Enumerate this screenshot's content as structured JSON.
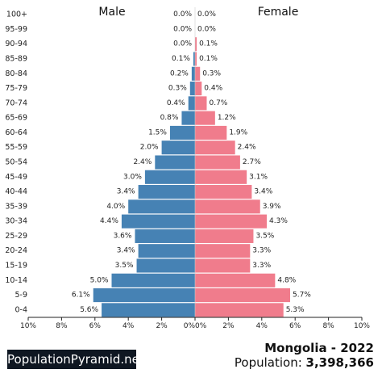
{
  "chart_data": {
    "type": "bar",
    "orientation": "horizontal-population-pyramid",
    "side_labels": {
      "left": "Male",
      "right": "Female"
    },
    "categories": [
      "100+",
      "95-99",
      "90-94",
      "85-89",
      "80-84",
      "75-79",
      "70-74",
      "65-69",
      "60-64",
      "55-59",
      "50-54",
      "45-49",
      "40-44",
      "35-39",
      "30-34",
      "25-29",
      "20-24",
      "15-19",
      "10-14",
      "5-9",
      "0-4"
    ],
    "series": [
      {
        "name": "Male",
        "values": [
          0.0,
          0.0,
          0.0,
          0.1,
          0.2,
          0.3,
          0.4,
          0.8,
          1.5,
          2.0,
          2.4,
          3.0,
          3.4,
          4.0,
          4.4,
          3.6,
          3.4,
          3.5,
          5.0,
          6.1,
          5.6
        ],
        "labels": [
          "0.0%",
          "0.0%",
          "0.0%",
          "0.1%",
          "0.2%",
          "0.3%",
          "0.4%",
          "0.8%",
          "1.5%",
          "2.0%",
          "2.4%",
          "3.0%",
          "3.4%",
          "4.0%",
          "4.4%",
          "3.6%",
          "3.4%",
          "3.5%",
          "5.0%",
          "6.1%",
          "5.6%"
        ]
      },
      {
        "name": "Female",
        "values": [
          0.0,
          0.0,
          0.1,
          0.1,
          0.3,
          0.4,
          0.7,
          1.2,
          1.9,
          2.4,
          2.7,
          3.1,
          3.4,
          3.9,
          4.3,
          3.5,
          3.3,
          3.3,
          4.8,
          5.7,
          5.3
        ],
        "labels": [
          "0.0%",
          "0.0%",
          "0.1%",
          "0.1%",
          "0.3%",
          "0.4%",
          "0.7%",
          "1.2%",
          "1.9%",
          "2.4%",
          "2.7%",
          "3.1%",
          "3.4%",
          "3.9%",
          "4.3%",
          "3.5%",
          "3.3%",
          "3.3%",
          "4.8%",
          "5.7%",
          "5.3%"
        ]
      }
    ],
    "xlim": [
      0,
      10
    ],
    "x_ticks": [
      "10%",
      "8%",
      "6%",
      "4%",
      "2%",
      "0%",
      "0%",
      "2%",
      "4%",
      "6%",
      "8%",
      "10%"
    ],
    "x_tick_values": [
      10,
      8,
      6,
      4,
      2,
      0,
      0,
      2,
      4,
      6,
      8,
      10
    ],
    "colors": {
      "male": "#4682b4",
      "female": "#f07c8c"
    }
  },
  "footer": {
    "brand": "PopulationPyramid.net",
    "country_year": "Mongolia - 2022",
    "population_label": "Population: ",
    "population_value": "3,398,366"
  }
}
